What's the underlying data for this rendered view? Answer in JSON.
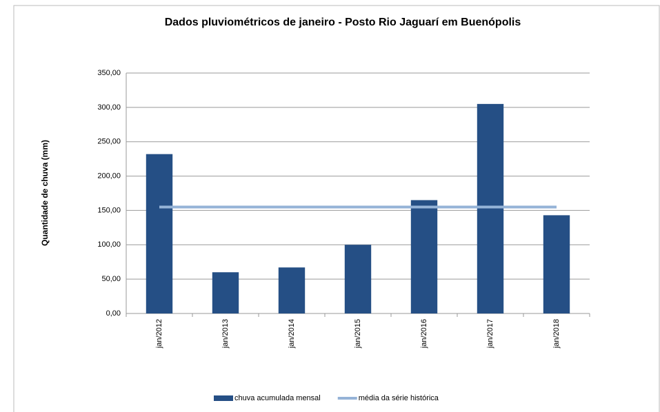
{
  "chart_data": {
    "type": "bar",
    "title": "Dados pluviométricos de janeiro - Posto Rio Jaguarí em Buenópolis",
    "y_label": "Quantidade de chuva (mm)",
    "categories": [
      "jan/2012",
      "jan/2013",
      "jan/2014",
      "jan/2015",
      "jan/2016",
      "jan/2017",
      "jan/2018"
    ],
    "series": [
      {
        "name": "chuva acumulada mensal",
        "type": "bar",
        "color": "#254f85",
        "values": [
          232,
          60,
          67,
          100,
          165,
          305,
          143
        ]
      },
      {
        "name": "média da série histórica",
        "type": "line",
        "color": "#95b3d7",
        "values": [
          155,
          155,
          155,
          155,
          155,
          155,
          155
        ]
      }
    ],
    "ylim": [
      0,
      350
    ],
    "yticks": [
      {
        "value": 0,
        "label": "0,00"
      },
      {
        "value": 50,
        "label": "50,00"
      },
      {
        "value": 100,
        "label": "100,00"
      },
      {
        "value": 150,
        "label": "150,00"
      },
      {
        "value": 200,
        "label": "200,00"
      },
      {
        "value": 250,
        "label": "250,00"
      },
      {
        "value": 300,
        "label": "300,00"
      },
      {
        "value": 350,
        "label": "350,00"
      }
    ],
    "grid": true,
    "legend": "bottom"
  }
}
